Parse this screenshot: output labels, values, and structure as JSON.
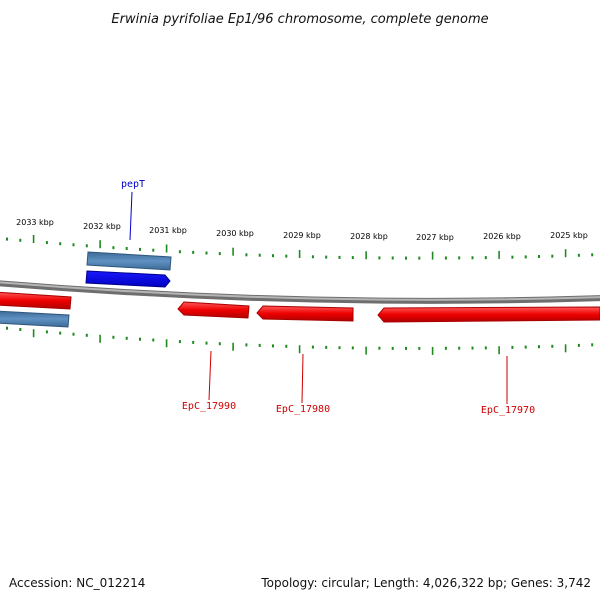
{
  "title": "Erwinia pyrifoliae Ep1/96 chromosome, complete genome",
  "ruler": {
    "labels": [
      "2033 kbp",
      "2032 kbp",
      "2031 kbp",
      "2030 kbp",
      "2029 kbp",
      "2028 kbp",
      "2027 kbp",
      "2026 kbp",
      "2025 kbp"
    ]
  },
  "genes": [
    {
      "label": "pepT",
      "color": "#0000cc",
      "fill": "#0000ee"
    },
    {
      "label": "EpC_17990",
      "color": "#cc0000",
      "fill": "#ee0000"
    },
    {
      "label": "EpC_17980",
      "color": "#cc0000",
      "fill": "#ee0000"
    },
    {
      "label": "EpC_17970",
      "color": "#cc0000",
      "fill": "#ee0000"
    }
  ],
  "colors": {
    "backbone": "#8a8a8a",
    "ticks": "#1f8a1f",
    "cds_steelblue": "#4d7fae",
    "cds_red": "#ee0000",
    "gene_blue": "#0000ee"
  },
  "footer": {
    "accession": "Accession: NC_012214",
    "summary": "Topology: circular; Length: 4,026,322 bp; Genes: 3,742"
  }
}
